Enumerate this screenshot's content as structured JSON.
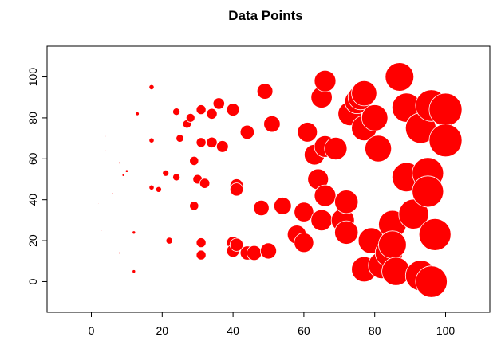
{
  "chart_data": {
    "type": "scatter",
    "title": "Data Points",
    "xlabel": "",
    "ylabel": "",
    "xlim": [
      -12.5,
      112.5
    ],
    "ylim": [
      -15,
      115
    ],
    "x_ticks": [
      "0",
      "20",
      "40",
      "60",
      "80",
      "100"
    ],
    "y_ticks": [
      "0",
      "20",
      "40",
      "60",
      "80",
      "100"
    ],
    "grid": false,
    "legend": "none",
    "marker_color": "#ff0000",
    "marker_edge_color": "#ffffff",
    "note_size": "marker size grows with x value",
    "points": [
      {
        "x": 2,
        "y": 38
      },
      {
        "x": 3,
        "y": 33
      },
      {
        "x": 3,
        "y": 25
      },
      {
        "x": 4,
        "y": 71
      },
      {
        "x": 4,
        "y": 64
      },
      {
        "x": 6,
        "y": 43
      },
      {
        "x": 8,
        "y": 58
      },
      {
        "x": 8,
        "y": 14
      },
      {
        "x": 9,
        "y": 52
      },
      {
        "x": 10,
        "y": 54
      },
      {
        "x": 12,
        "y": 24
      },
      {
        "x": 12,
        "y": 5
      },
      {
        "x": 13,
        "y": 82
      },
      {
        "x": 17,
        "y": 95
      },
      {
        "x": 17,
        "y": 69
      },
      {
        "x": 17,
        "y": 46
      },
      {
        "x": 19,
        "y": 45
      },
      {
        "x": 21,
        "y": 53
      },
      {
        "x": 22,
        "y": 20
      },
      {
        "x": 24,
        "y": 83
      },
      {
        "x": 24,
        "y": 51
      },
      {
        "x": 25,
        "y": 70
      },
      {
        "x": 27,
        "y": 77
      },
      {
        "x": 28,
        "y": 80
      },
      {
        "x": 29,
        "y": 59
      },
      {
        "x": 29,
        "y": 37
      },
      {
        "x": 30,
        "y": 50
      },
      {
        "x": 31,
        "y": 84
      },
      {
        "x": 31,
        "y": 68
      },
      {
        "x": 31,
        "y": 19
      },
      {
        "x": 31,
        "y": 13
      },
      {
        "x": 32,
        "y": 48
      },
      {
        "x": 34,
        "y": 82
      },
      {
        "x": 34,
        "y": 68
      },
      {
        "x": 36,
        "y": 87
      },
      {
        "x": 37,
        "y": 66
      },
      {
        "x": 40,
        "y": 84
      },
      {
        "x": 40,
        "y": 19
      },
      {
        "x": 40,
        "y": 15
      },
      {
        "x": 41,
        "y": 47
      },
      {
        "x": 41,
        "y": 45
      },
      {
        "x": 41,
        "y": 18
      },
      {
        "x": 44,
        "y": 73
      },
      {
        "x": 44,
        "y": 14
      },
      {
        "x": 46,
        "y": 14
      },
      {
        "x": 48,
        "y": 36
      },
      {
        "x": 49,
        "y": 93
      },
      {
        "x": 50,
        "y": 15
      },
      {
        "x": 51,
        "y": 77
      },
      {
        "x": 54,
        "y": 37
      },
      {
        "x": 58,
        "y": 23
      },
      {
        "x": 60,
        "y": 34
      },
      {
        "x": 60,
        "y": 19
      },
      {
        "x": 61,
        "y": 73
      },
      {
        "x": 63,
        "y": 62
      },
      {
        "x": 64,
        "y": 50
      },
      {
        "x": 65,
        "y": 90
      },
      {
        "x": 65,
        "y": 30
      },
      {
        "x": 66,
        "y": 98
      },
      {
        "x": 66,
        "y": 66
      },
      {
        "x": 66,
        "y": 42
      },
      {
        "x": 69,
        "y": 65
      },
      {
        "x": 71,
        "y": 30
      },
      {
        "x": 72,
        "y": 39
      },
      {
        "x": 72,
        "y": 24
      },
      {
        "x": 73,
        "y": 82
      },
      {
        "x": 75,
        "y": 88
      },
      {
        "x": 76,
        "y": 90
      },
      {
        "x": 77,
        "y": 92
      },
      {
        "x": 77,
        "y": 75
      },
      {
        "x": 77,
        "y": 6
      },
      {
        "x": 79,
        "y": 20
      },
      {
        "x": 80,
        "y": 80
      },
      {
        "x": 81,
        "y": 65
      },
      {
        "x": 82,
        "y": 8
      },
      {
        "x": 84,
        "y": 14
      },
      {
        "x": 85,
        "y": 28
      },
      {
        "x": 85,
        "y": 18
      },
      {
        "x": 86,
        "y": 5
      },
      {
        "x": 87,
        "y": 100
      },
      {
        "x": 89,
        "y": 85
      },
      {
        "x": 89,
        "y": 51
      },
      {
        "x": 91,
        "y": 33
      },
      {
        "x": 93,
        "y": 75
      },
      {
        "x": 93,
        "y": 3
      },
      {
        "x": 95,
        "y": 53
      },
      {
        "x": 95,
        "y": 44
      },
      {
        "x": 96,
        "y": 86
      },
      {
        "x": 96,
        "y": 0
      },
      {
        "x": 97,
        "y": 23
      },
      {
        "x": 100,
        "y": 84
      },
      {
        "x": 100,
        "y": 69
      }
    ]
  }
}
